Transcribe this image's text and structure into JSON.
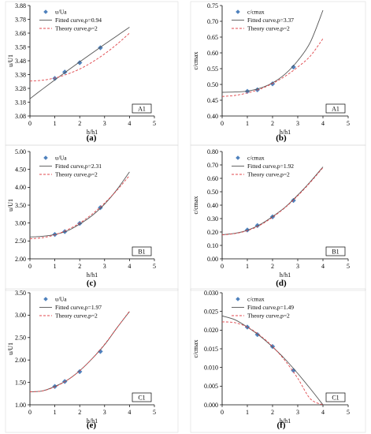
{
  "chart_data": [
    {
      "type": "line",
      "panel": "(a)",
      "tag": "A1",
      "xlabel": "h/h1",
      "ylabel": "u/U1",
      "xlim": [
        0,
        5
      ],
      "ylim": [
        3.08,
        3.88
      ],
      "xticks": [
        0,
        1,
        2,
        3,
        4,
        5
      ],
      "yticks": [
        "3.08",
        "3.18",
        "3.28",
        "3.38",
        "3.48",
        "3.58",
        "3.68",
        "3.78",
        "3.88"
      ],
      "series": [
        {
          "name": "u/Ua",
          "kind": "marker",
          "x": [
            1.0,
            1.4,
            2.0,
            2.83
          ],
          "y": [
            3.352,
            3.398,
            3.466,
            3.574
          ]
        },
        {
          "name": "Fitted curve,p=0.94",
          "kind": "solid",
          "x": [
            0.0,
            0.5,
            1.0,
            1.5,
            2.0,
            2.5,
            3.0,
            3.5,
            4.0
          ],
          "y": [
            3.205,
            3.274,
            3.341,
            3.407,
            3.472,
            3.536,
            3.599,
            3.661,
            3.723
          ]
        },
        {
          "name": "Theory curve,p=2",
          "kind": "dashed",
          "x": [
            0.0,
            0.5,
            1.0,
            1.5,
            2.0,
            2.5,
            3.0,
            3.5,
            4.0
          ],
          "y": [
            3.333,
            3.339,
            3.355,
            3.383,
            3.42,
            3.47,
            3.53,
            3.6,
            3.68
          ]
        }
      ]
    },
    {
      "type": "line",
      "panel": "(b)",
      "tag": "A1",
      "xlabel": "h/h1",
      "ylabel": "c/cmax",
      "xlim": [
        0,
        5
      ],
      "ylim": [
        0.4,
        0.75
      ],
      "xticks": [
        0,
        1,
        2,
        3,
        4,
        5
      ],
      "yticks": [
        "0.40",
        "0.45",
        "0.50",
        "0.55",
        "0.60",
        "0.65",
        "0.70",
        "0.75"
      ],
      "series": [
        {
          "name": "c/cmax",
          "kind": "marker",
          "x": [
            1.0,
            1.4,
            2.0,
            2.83
          ],
          "y": [
            0.478,
            0.483,
            0.502,
            0.555
          ]
        },
        {
          "name": "Fitted curve,p=3.37",
          "kind": "solid",
          "x": [
            0.0,
            0.5,
            1.0,
            1.5,
            2.0,
            2.5,
            3.0,
            3.5,
            4.0
          ],
          "y": [
            0.475,
            0.476,
            0.479,
            0.488,
            0.505,
            0.533,
            0.575,
            0.634,
            0.735
          ]
        },
        {
          "name": "Theory curve,p=2",
          "kind": "dashed",
          "x": [
            0.0,
            0.5,
            1.0,
            1.5,
            2.0,
            2.5,
            3.0,
            3.5,
            4.0
          ],
          "y": [
            0.462,
            0.465,
            0.473,
            0.485,
            0.503,
            0.526,
            0.555,
            0.59,
            0.645
          ]
        }
      ]
    },
    {
      "type": "line",
      "panel": "(c)",
      "tag": "B1",
      "xlabel": "h/h1",
      "ylabel": "u/U1",
      "xlim": [
        0,
        5
      ],
      "ylim": [
        2.0,
        5.0
      ],
      "xticks": [
        0,
        1,
        2,
        3,
        4,
        5
      ],
      "yticks": [
        "2.00",
        "2.50",
        "3.00",
        "3.50",
        "4.00",
        "4.50",
        "5.00"
      ],
      "series": [
        {
          "name": "u/Ua",
          "kind": "marker",
          "x": [
            1.0,
            1.4,
            2.0,
            2.83
          ],
          "y": [
            2.68,
            2.76,
            2.99,
            3.43
          ]
        },
        {
          "name": "Fitted curve,p=2.31",
          "kind": "solid",
          "x": [
            0.0,
            0.5,
            1.0,
            1.5,
            2.0,
            2.5,
            3.0,
            3.5,
            4.0
          ],
          "y": [
            2.61,
            2.63,
            2.68,
            2.78,
            2.97,
            3.21,
            3.53,
            3.94,
            4.43
          ]
        },
        {
          "name": "Theory curve,p=2",
          "kind": "dashed",
          "x": [
            0.0,
            0.5,
            1.0,
            1.5,
            2.0,
            2.5,
            3.0,
            3.5,
            4.0
          ],
          "y": [
            2.56,
            2.59,
            2.67,
            2.81,
            3.0,
            3.25,
            3.56,
            3.92,
            4.33
          ]
        }
      ]
    },
    {
      "type": "line",
      "panel": "(d)",
      "tag": "B1",
      "xlabel": "h/h1",
      "ylabel": "c/cmax",
      "xlim": [
        0,
        5
      ],
      "ylim": [
        0.0,
        0.8
      ],
      "xticks": [
        0,
        1,
        2,
        3,
        4,
        5
      ],
      "yticks": [
        "0.00",
        "0.10",
        "0.20",
        "0.30",
        "0.40",
        "0.50",
        "0.60",
        "0.70",
        "0.80"
      ],
      "series": [
        {
          "name": "c/cmax",
          "kind": "marker",
          "x": [
            1.0,
            1.4,
            2.0,
            2.83
          ],
          "y": [
            0.215,
            0.248,
            0.313,
            0.435
          ]
        },
        {
          "name": "Fitted curve,p=1.92",
          "kind": "solid",
          "x": [
            0.0,
            0.5,
            1.0,
            1.5,
            2.0,
            2.5,
            3.0,
            3.5,
            4.0
          ],
          "y": [
            0.18,
            0.19,
            0.213,
            0.255,
            0.315,
            0.385,
            0.475,
            0.575,
            0.685
          ]
        },
        {
          "name": "Theory curve,p=2",
          "kind": "dashed",
          "x": [
            0.0,
            0.5,
            1.0,
            1.5,
            2.0,
            2.5,
            3.0,
            3.5,
            4.0
          ],
          "y": [
            0.178,
            0.188,
            0.21,
            0.25,
            0.31,
            0.382,
            0.47,
            0.57,
            0.68
          ]
        }
      ]
    },
    {
      "type": "line",
      "panel": "(e)",
      "tag": "C1",
      "xlabel": "h/h1",
      "ylabel": "u/U1",
      "xlim": [
        0,
        5
      ],
      "ylim": [
        1.0,
        3.5
      ],
      "xticks": [
        0,
        1,
        2,
        3,
        4,
        5
      ],
      "yticks": [
        "1.00",
        "1.50",
        "2.00",
        "2.50",
        "3.00",
        "3.50"
      ],
      "series": [
        {
          "name": "u/Ua",
          "kind": "marker",
          "x": [
            1.0,
            1.4,
            2.0,
            2.83
          ],
          "y": [
            1.41,
            1.52,
            1.74,
            2.19
          ]
        },
        {
          "name": "Fitted curve,p=1.97",
          "kind": "solid",
          "x": [
            0.0,
            0.5,
            1.0,
            1.5,
            2.0,
            2.5,
            3.0,
            3.5,
            4.0
          ],
          "y": [
            1.29,
            1.31,
            1.41,
            1.55,
            1.76,
            2.03,
            2.34,
            2.72,
            3.08
          ]
        },
        {
          "name": "Theory curve,p=2",
          "kind": "dashed",
          "x": [
            0.0,
            0.5,
            1.0,
            1.5,
            2.0,
            2.5,
            3.0,
            3.5,
            4.0
          ],
          "y": [
            1.29,
            1.31,
            1.4,
            1.55,
            1.76,
            2.03,
            2.35,
            2.72,
            3.09
          ]
        }
      ]
    },
    {
      "type": "line",
      "panel": "(f)",
      "tag": "C1",
      "xlabel": "h/h1",
      "ylabel": "c/cmax",
      "xlim": [
        0,
        5
      ],
      "ylim": [
        0.0,
        0.03
      ],
      "xticks": [
        0,
        1,
        2,
        3,
        4,
        5
      ],
      "yticks": [
        "0.000",
        "0.005",
        "0.010",
        "0.015",
        "0.020",
        "0.025",
        "0.030"
      ],
      "series": [
        {
          "name": "c/cmax",
          "kind": "marker",
          "x": [
            1.0,
            1.4,
            2.0,
            2.83
          ],
          "y": [
            0.0208,
            0.0188,
            0.0156,
            0.0092
          ]
        },
        {
          "name": "Fitted curve,p=1.49",
          "kind": "solid",
          "x": [
            0.0,
            0.5,
            1.0,
            1.5,
            2.0,
            2.5,
            3.0,
            3.5,
            4.0
          ],
          "y": [
            0.0238,
            0.0228,
            0.0208,
            0.0184,
            0.0155,
            0.0122,
            0.0084,
            0.0043,
            0.0
          ]
        },
        {
          "name": "Theory curve,p=2",
          "kind": "dashed",
          "x": [
            0.0,
            0.5,
            1.0,
            1.5,
            2.0,
            2.5,
            3.0,
            3.5,
            4.0
          ],
          "y": [
            0.0222,
            0.022,
            0.0208,
            0.0186,
            0.0156,
            0.0118,
            0.0071,
            0.0016,
            0.0
          ]
        }
      ]
    }
  ],
  "colors": {
    "marker": "#4f81bd",
    "fitted": "#555555",
    "theory": "#e0474c",
    "frame": "#000000",
    "background": "#ffffff"
  }
}
